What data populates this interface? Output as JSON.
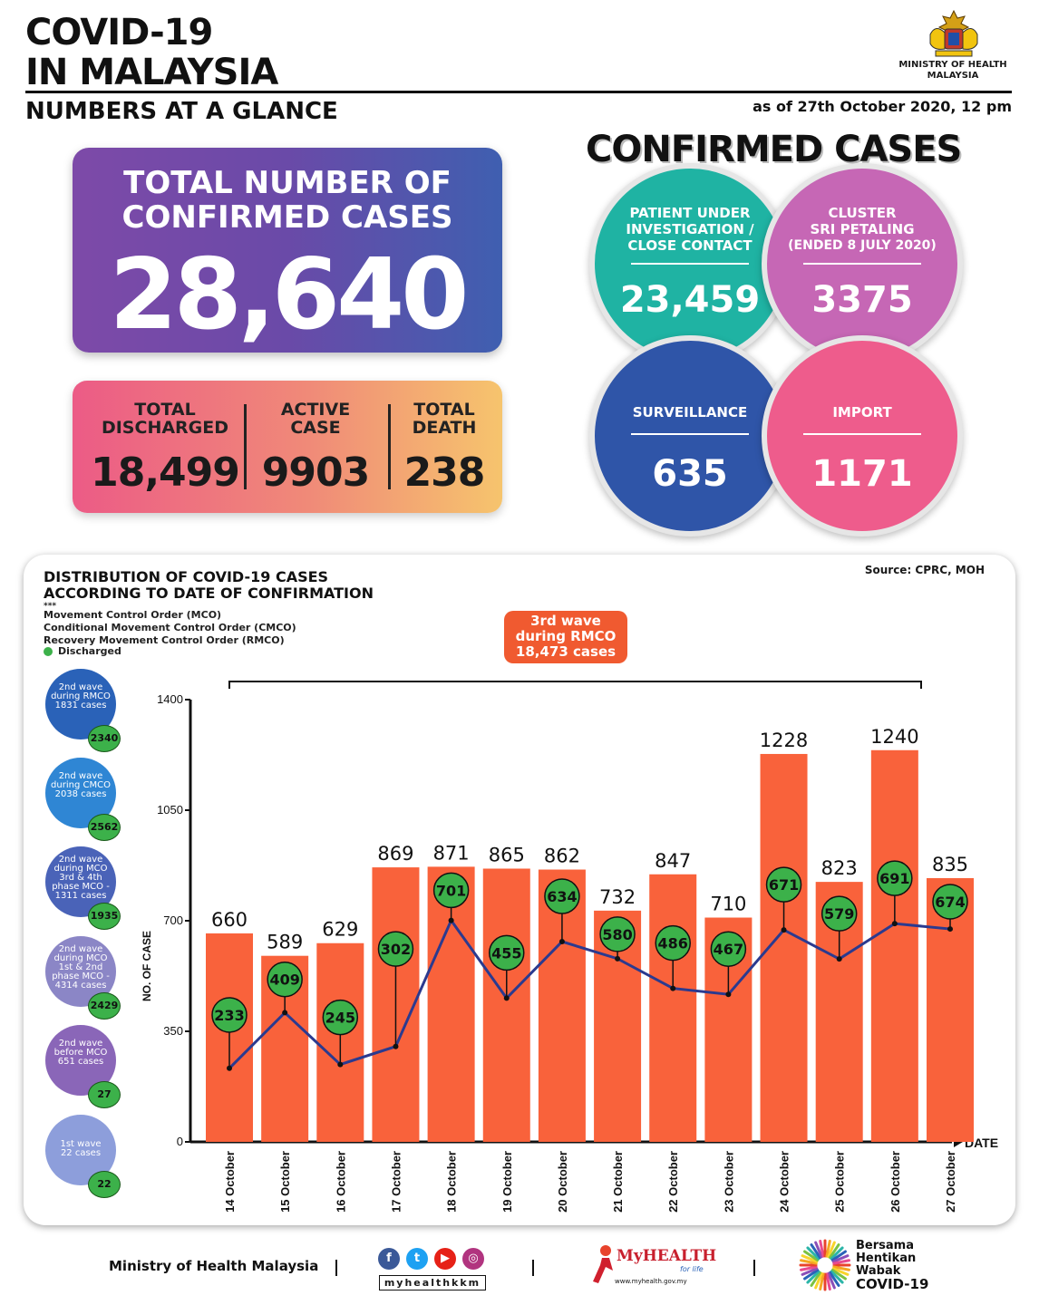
{
  "header": {
    "title_line1": "COVID-19",
    "title_line2": "IN MALAYSIA",
    "subtitle": "NUMBERS AT A GLANCE",
    "as_of": "as of 27th October 2020, 12 pm",
    "ministry_line1": "MINISTRY OF HEALTH",
    "ministry_line2": "MALAYSIA"
  },
  "total": {
    "label_line1": "TOTAL NUMBER OF",
    "label_line2": "CONFIRMED CASES",
    "value": "28,640",
    "gradient_start": "#7d4aa8",
    "gradient_end": "#3f5fb0"
  },
  "summary": {
    "discharged_l1": "TOTAL",
    "discharged_l2": "DISCHARGED",
    "discharged_value": "18,499",
    "active_l1": "ACTIVE",
    "active_l2": "CASE",
    "active_value": "9903",
    "death_l1": "TOTAL",
    "death_l2": "DEATH",
    "death_value": "238"
  },
  "confirmed_cases": {
    "title": "CONFIRMED CASES",
    "pui_l1": "PATIENT UNDER",
    "pui_l2": "INVESTIGATION /",
    "pui_l3": "CLOSE CONTACT",
    "pui_value": "23,459",
    "pui_color": "#1fb3a3",
    "cluster_l1": "CLUSTER",
    "cluster_l2": "SRI PETALING",
    "cluster_l3": "(ENDED 8 JULY 2020)",
    "cluster_value": "3375",
    "cluster_color": "#c667b5",
    "surveillance_label": "SURVEILLANCE",
    "surveillance_value": "635",
    "surveillance_color": "#2f55a8",
    "import_label": "IMPORT",
    "import_value": "1171",
    "import_color": "#ee5c8c"
  },
  "distribution": {
    "title_l1": "DISTRIBUTION OF COVID-19 CASES",
    "title_l2": "ACCORDING TO DATE OF CONFIRMATION",
    "source": "Source: CPRC, MOH",
    "stars": "***",
    "legend_mco": "Movement Control Order (MCO)",
    "legend_cmco": "Conditional Movement Control Order (CMCO)",
    "legend_rmco": "Recovery Movement Control Order (RMCO)",
    "legend_discharged": "Discharged",
    "wave_box_l1": "3rd wave",
    "wave_box_l2": "during RMCO",
    "wave_box_l3": "18,473 cases",
    "waves": [
      {
        "l1": "2nd wave",
        "l2": "during RMCO",
        "l3": "1831 cases",
        "l4": "",
        "discharged": "2340",
        "color": "#2a62b8"
      },
      {
        "l1": "2nd wave",
        "l2": "during CMCO",
        "l3": "2038 cases",
        "l4": "",
        "discharged": "2562",
        "color": "#2f86d4"
      },
      {
        "l1": "2nd wave",
        "l2": "during MCO",
        "l3": "3rd & 4th",
        "l4": "phase MCO -",
        "l5": "1311 cases",
        "discharged": "1935",
        "color": "#4a63b8"
      },
      {
        "l1": "2nd wave",
        "l2": "during MCO",
        "l3": "1st & 2nd",
        "l4": "phase MCO -",
        "l5": "4314 cases",
        "discharged": "2429",
        "color": "#8b86c6"
      },
      {
        "l1": "2nd wave",
        "l2": "before MCO",
        "l3": "651 cases",
        "l4": "",
        "discharged": "27",
        "color": "#8a66b8"
      },
      {
        "l1": "1st wave",
        "l2": "22 cases",
        "l3": "",
        "l4": "",
        "discharged": "22",
        "color": "#8d9edb"
      }
    ]
  },
  "chart_data": {
    "type": "bar",
    "categories": [
      "14 October",
      "15 October",
      "16 October",
      "17 October",
      "18 October",
      "19 October",
      "20 October",
      "21 October",
      "22 October",
      "23 October",
      "24 October",
      "25 October",
      "26 October",
      "27 October"
    ],
    "series": [
      {
        "name": "",
        "type": "bar",
        "values": [
          660,
          589,
          629,
          869,
          871,
          865,
          862,
          732,
          847,
          710,
          1228,
          823,
          1240,
          835
        ],
        "color": "#f9623b"
      },
      {
        "name": "Discharged",
        "type": "line",
        "values": [
          233,
          409,
          245,
          302,
          701,
          455,
          634,
          580,
          486,
          467,
          671,
          579,
          691,
          674
        ],
        "color": "#2b3a8f"
      }
    ],
    "ylabel": "NO. OF CASE",
    "xlabel": "DATE",
    "yticks": [
      0,
      350,
      700,
      1050,
      1400
    ],
    "ylim": [
      0,
      1400
    ],
    "discharged_marker_color": "#3cb14a"
  },
  "footer": {
    "ministry": "Ministry of Health Malaysia",
    "handle": "myhealthkkm",
    "myhealth": "MyHEALTH",
    "myhealth_tag": "for life",
    "myhealth_url": "www.myhealth.gov.my",
    "campaign_l1": "Bersama",
    "campaign_l2": "Hentikan",
    "campaign_l3": "Wabak",
    "campaign_l4": "COVID-19"
  }
}
